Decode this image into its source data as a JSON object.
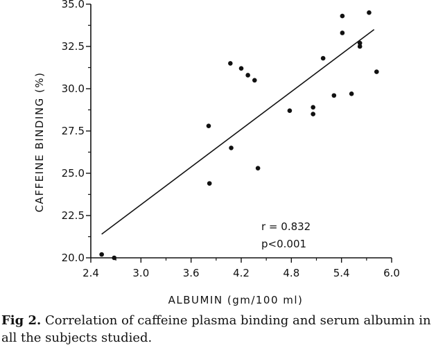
{
  "chart_data": {
    "type": "scatter",
    "xlabel": "ALBUMIN (gm/100 ml)",
    "ylabel": "CAFFEINE BINDING (%)",
    "xlim": [
      2.4,
      6.0
    ],
    "ylim": [
      20.0,
      35.0
    ],
    "x_ticks": [
      "2.4",
      "3.0",
      "3.6",
      "4.2",
      "4.8",
      "5.4",
      "6.0"
    ],
    "y_ticks": [
      "20.0",
      "22.5",
      "25.0",
      "27.5",
      "30.0",
      "32.5",
      "35.0"
    ],
    "grid": false,
    "points": [
      {
        "x": 2.53,
        "y": 20.2
      },
      {
        "x": 2.68,
        "y": 20.0
      },
      {
        "x": 3.81,
        "y": 27.8
      },
      {
        "x": 3.82,
        "y": 24.4
      },
      {
        "x": 4.07,
        "y": 31.5
      },
      {
        "x": 4.08,
        "y": 26.5
      },
      {
        "x": 4.2,
        "y": 31.2
      },
      {
        "x": 4.28,
        "y": 30.8
      },
      {
        "x": 4.36,
        "y": 30.5
      },
      {
        "x": 4.4,
        "y": 25.3
      },
      {
        "x": 4.78,
        "y": 28.7
      },
      {
        "x": 5.06,
        "y": 28.9
      },
      {
        "x": 5.06,
        "y": 28.5
      },
      {
        "x": 5.18,
        "y": 31.8
      },
      {
        "x": 5.31,
        "y": 29.6
      },
      {
        "x": 5.41,
        "y": 34.3
      },
      {
        "x": 5.41,
        "y": 33.3
      },
      {
        "x": 5.52,
        "y": 29.7
      },
      {
        "x": 5.62,
        "y": 32.7
      },
      {
        "x": 5.62,
        "y": 32.5
      },
      {
        "x": 5.73,
        "y": 34.5
      },
      {
        "x": 5.82,
        "y": 31.0
      }
    ],
    "fit_line": {
      "x": [
        2.53,
        5.79
      ],
      "y": [
        21.4,
        33.5
      ]
    },
    "annotations": [
      "r = 0.832",
      "p<0.001"
    ]
  },
  "caption": {
    "label": "Fig 2.",
    "text": " Correlation of caffeine plasma binding and serum albumin in all the subjects studied."
  },
  "colors": {
    "ink": "#111111",
    "background": "#ffffff"
  }
}
